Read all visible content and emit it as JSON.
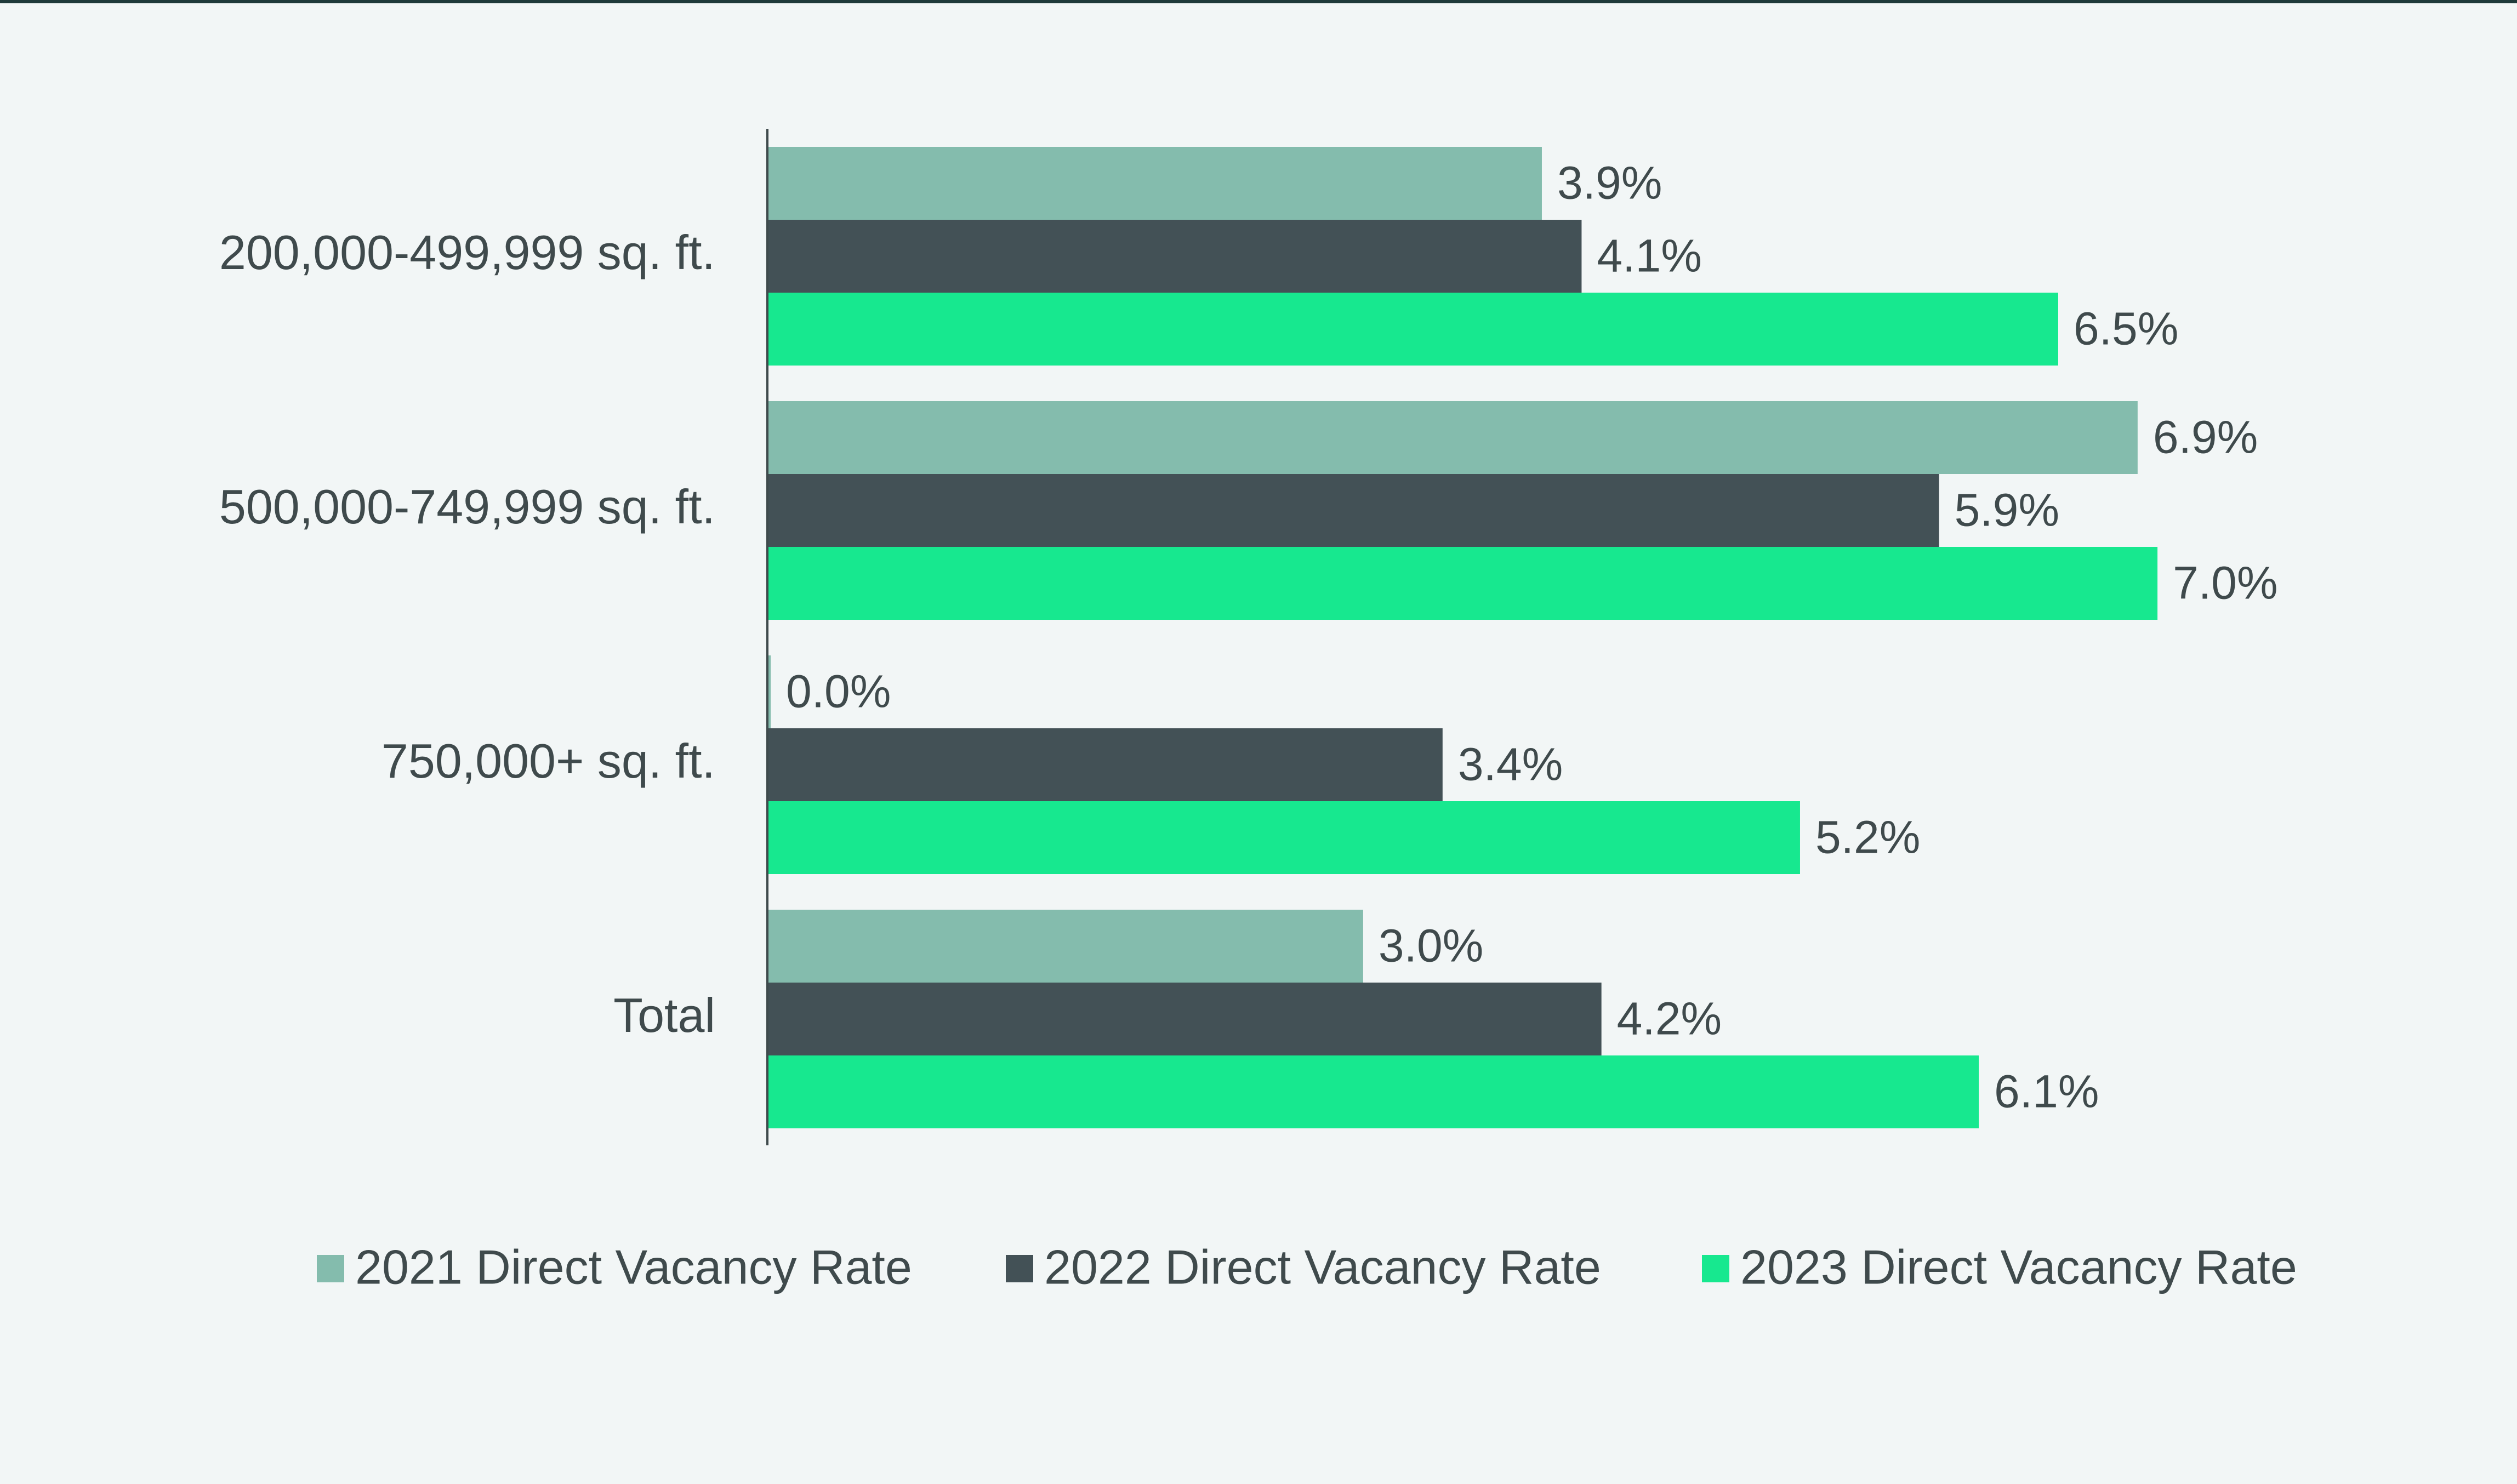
{
  "chart_data": {
    "type": "bar",
    "orientation": "horizontal",
    "categories": [
      "200,000-499,999 sq. ft.",
      "500,000-749,999 sq. ft.",
      "750,000+ sq. ft.",
      "Total"
    ],
    "series": [
      {
        "name": "2021 Direct Vacancy Rate",
        "color": "#84bcad",
        "values": [
          3.9,
          6.9,
          0.0,
          3.0
        ],
        "labels": [
          "3.9%",
          "6.9%",
          "0.0%",
          "3.0%"
        ]
      },
      {
        "name": "2022 Direct Vacancy Rate",
        "color": "#435156",
        "values": [
          4.1,
          5.9,
          3.4,
          4.2
        ],
        "labels": [
          "4.1%",
          "5.9%",
          "3.4%",
          "4.2%"
        ]
      },
      {
        "name": "2023 Direct Vacancy Rate",
        "color": "#17e88f",
        "values": [
          6.5,
          7.0,
          5.2,
          6.1
        ],
        "labels": [
          "6.5%",
          "7.0%",
          "5.2%",
          "6.1%"
        ]
      }
    ],
    "xlim": [
      0,
      8.5
    ],
    "grid": false,
    "legend": "bottom",
    "title": "",
    "xlabel": "",
    "ylabel": ""
  }
}
